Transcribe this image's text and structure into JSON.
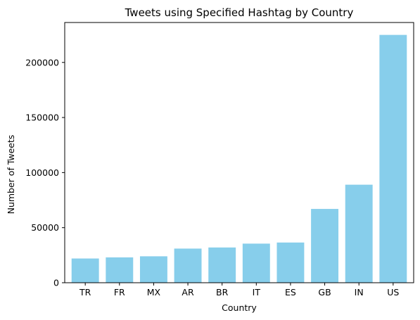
{
  "chart_data": {
    "type": "bar",
    "title": "Tweets using Specified Hashtag by Country",
    "xlabel": "Country",
    "ylabel": "Number of Tweets",
    "categories": [
      "TR",
      "FR",
      "MX",
      "AR",
      "BR",
      "IT",
      "ES",
      "GB",
      "IN",
      "US"
    ],
    "values": [
      22000,
      23000,
      24000,
      31000,
      32000,
      35500,
      36500,
      67000,
      89000,
      225000
    ],
    "ylim": [
      0,
      236250
    ],
    "yticks": [
      0,
      50000,
      100000,
      150000,
      200000
    ],
    "ytick_labels": [
      "0",
      "50000",
      "100000",
      "150000",
      "200000"
    ],
    "bar_color": "#87ceeb",
    "grid": false,
    "legend": "none"
  }
}
